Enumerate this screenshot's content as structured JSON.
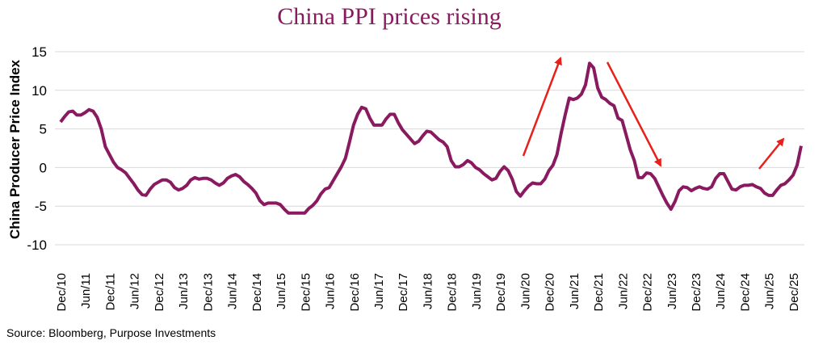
{
  "chart_data": {
    "type": "line",
    "title": "China PPI prices rising",
    "y_label": "China Producer Price Index",
    "source": "Source: Bloomberg, Purpose Investments",
    "ylim": [
      -10,
      15
    ],
    "yticks": [
      -10,
      -5,
      0,
      5,
      10,
      15
    ],
    "grid": true,
    "categories": [
      "Dec/10",
      null,
      null,
      null,
      null,
      null,
      "Jun/11",
      null,
      null,
      null,
      null,
      null,
      "Dec/11",
      null,
      null,
      null,
      null,
      null,
      "Jun/12",
      null,
      null,
      null,
      null,
      null,
      "Dec/12",
      null,
      null,
      null,
      null,
      null,
      "Jun/13",
      null,
      null,
      null,
      null,
      null,
      "Dec/13",
      null,
      null,
      null,
      null,
      null,
      "Jun/14",
      null,
      null,
      null,
      null,
      null,
      "Dec/14",
      null,
      null,
      null,
      null,
      null,
      "Jun/15",
      null,
      null,
      null,
      null,
      null,
      "Dec/15",
      null,
      null,
      null,
      null,
      null,
      "Jun/16",
      null,
      null,
      null,
      null,
      null,
      "Dec/16",
      null,
      null,
      null,
      null,
      null,
      "Jun/17",
      null,
      null,
      null,
      null,
      null,
      "Dec/17",
      null,
      null,
      null,
      null,
      null,
      "Jun/18",
      null,
      null,
      null,
      null,
      null,
      "Dec/18",
      null,
      null,
      null,
      null,
      null,
      "Jun/19",
      null,
      null,
      null,
      null,
      null,
      "Dec/19",
      null,
      null,
      null,
      null,
      null,
      "Jun/20",
      null,
      null,
      null,
      null,
      null,
      "Dec/20",
      null,
      null,
      null,
      null,
      null,
      "Jun/21",
      null,
      null,
      null,
      null,
      null,
      "Dec/21",
      null,
      null,
      null,
      null,
      null,
      "Jun/22",
      null,
      null,
      null,
      null,
      null,
      "Dec/22",
      null,
      null,
      null,
      null,
      null,
      "Jun/23",
      null,
      null,
      null,
      null,
      null,
      "Dec/23",
      null,
      null,
      null,
      null,
      null,
      "Jun/24",
      null,
      null,
      null,
      null,
      null,
      "Dec/24",
      null,
      null,
      null,
      null,
      null,
      "Jun/25",
      null,
      null,
      null,
      null,
      null,
      "Dec/25",
      null,
      null
    ],
    "series": [
      {
        "color": "#8a1a60",
        "values": [
          5.9,
          6.6,
          7.2,
          7.3,
          6.8,
          6.8,
          7.1,
          7.5,
          7.3,
          6.5,
          5.0,
          2.7,
          1.7,
          0.7,
          0.0,
          -0.3,
          -0.7,
          -1.4,
          -2.1,
          -2.9,
          -3.5,
          -3.6,
          -2.8,
          -2.2,
          -1.9,
          -1.6,
          -1.6,
          -1.9,
          -2.6,
          -2.9,
          -2.7,
          -2.3,
          -1.6,
          -1.3,
          -1.5,
          -1.4,
          -1.4,
          -1.6,
          -2.0,
          -2.3,
          -2.0,
          -1.4,
          -1.1,
          -0.9,
          -1.2,
          -1.8,
          -2.2,
          -2.7,
          -3.3,
          -4.3,
          -4.8,
          -4.6,
          -4.6,
          -4.6,
          -4.8,
          -5.4,
          -5.9,
          -5.9,
          -5.9,
          -5.9,
          -5.9,
          -5.3,
          -4.9,
          -4.3,
          -3.4,
          -2.8,
          -2.6,
          -1.7,
          -0.8,
          0.1,
          1.2,
          3.3,
          5.5,
          6.9,
          7.8,
          7.6,
          6.4,
          5.5,
          5.5,
          5.5,
          6.3,
          6.9,
          6.9,
          5.8,
          4.9,
          4.3,
          3.7,
          3.1,
          3.4,
          4.1,
          4.7,
          4.6,
          4.1,
          3.6,
          3.3,
          2.7,
          0.9,
          0.1,
          0.1,
          0.4,
          0.9,
          0.6,
          0.0,
          -0.3,
          -0.8,
          -1.2,
          -1.6,
          -1.4,
          -0.5,
          0.1,
          -0.4,
          -1.5,
          -3.1,
          -3.7,
          -3.0,
          -2.4,
          -2.0,
          -2.1,
          -2.1,
          -1.5,
          -0.4,
          0.3,
          1.7,
          4.4,
          6.8,
          9.0,
          8.8,
          9.0,
          9.5,
          10.7,
          13.5,
          12.9,
          10.3,
          9.1,
          8.8,
          8.3,
          8.0,
          6.4,
          6.1,
          4.2,
          2.3,
          0.9,
          -1.3,
          -1.3,
          -0.7,
          -0.8,
          -1.4,
          -2.5,
          -3.6,
          -4.6,
          -5.4,
          -4.4,
          -3.0,
          -2.5,
          -2.6,
          -3.0,
          -2.7,
          -2.5,
          -2.7,
          -2.8,
          -2.5,
          -1.4,
          -0.8,
          -0.8,
          -1.8,
          -2.8,
          -2.9,
          -2.5,
          -2.3,
          -2.3,
          -2.2,
          -2.5,
          -2.7,
          -3.3,
          -3.6,
          -3.6,
          -2.9,
          -2.3,
          -2.1,
          -1.6,
          -1.0,
          0.3,
          2.8
        ]
      }
    ]
  }
}
